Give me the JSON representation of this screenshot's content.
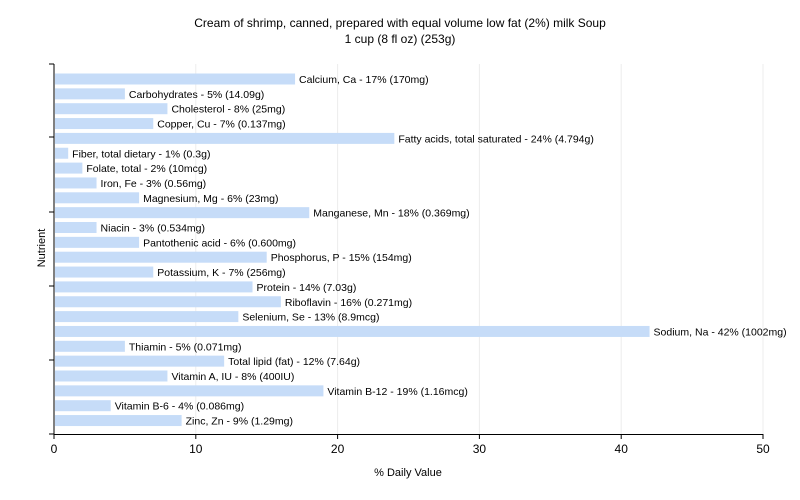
{
  "title": {
    "line1": "Cream of shrimp, canned, prepared with equal volume low fat (2%) milk Soup",
    "line2": "1 cup (8 fl oz) (253g)"
  },
  "chart_data": {
    "type": "bar",
    "orientation": "horizontal",
    "xlabel": "% Daily Value",
    "ylabel": "Nutrient",
    "xlim": [
      0,
      50
    ],
    "xticks": [
      0,
      10,
      20,
      30,
      40,
      50
    ],
    "grid": true,
    "bar_color": "#c6dcf8",
    "categories": [
      "Calcium, Ca",
      "Carbohydrates",
      "Cholesterol",
      "Copper, Cu",
      "Fatty acids, total saturated",
      "Fiber, total dietary",
      "Folate, total",
      "Iron, Fe",
      "Magnesium, Mg",
      "Manganese, Mn",
      "Niacin",
      "Pantothenic acid",
      "Phosphorus, P",
      "Potassium, K",
      "Protein",
      "Riboflavin",
      "Selenium, Se",
      "Sodium, Na",
      "Thiamin",
      "Total lipid (fat)",
      "Vitamin A, IU",
      "Vitamin B-12",
      "Vitamin B-6",
      "Zinc, Zn"
    ],
    "values": [
      17,
      5,
      8,
      7,
      24,
      1,
      2,
      3,
      6,
      18,
      3,
      6,
      15,
      7,
      14,
      16,
      13,
      42,
      5,
      12,
      8,
      19,
      4,
      9
    ],
    "labels": [
      "Calcium, Ca - 17% (170mg)",
      "Carbohydrates - 5% (14.09g)",
      "Cholesterol - 8% (25mg)",
      "Copper, Cu - 7% (0.137mg)",
      "Fatty acids, total saturated - 24% (4.794g)",
      "Fiber, total dietary - 1% (0.3g)",
      "Folate, total - 2% (10mcg)",
      "Iron, Fe - 3% (0.56mg)",
      "Magnesium, Mg - 6% (23mg)",
      "Manganese, Mn - 18% (0.369mg)",
      "Niacin - 3% (0.534mg)",
      "Pantothenic acid - 6% (0.600mg)",
      "Phosphorus, P - 15% (154mg)",
      "Potassium, K - 7% (256mg)",
      "Protein - 14% (7.03g)",
      "Riboflavin - 16% (0.271mg)",
      "Selenium, Se - 13% (8.9mcg)",
      "Sodium, Na - 42% (1002mg)",
      "Thiamin - 5% (0.071mg)",
      "Total lipid (fat) - 12% (7.64g)",
      "Vitamin A, IU - 8% (400IU)",
      "Vitamin B-12 - 19% (1.16mcg)",
      "Vitamin B-6 - 4% (0.086mg)",
      "Zinc, Zn - 9% (1.29mg)"
    ]
  }
}
